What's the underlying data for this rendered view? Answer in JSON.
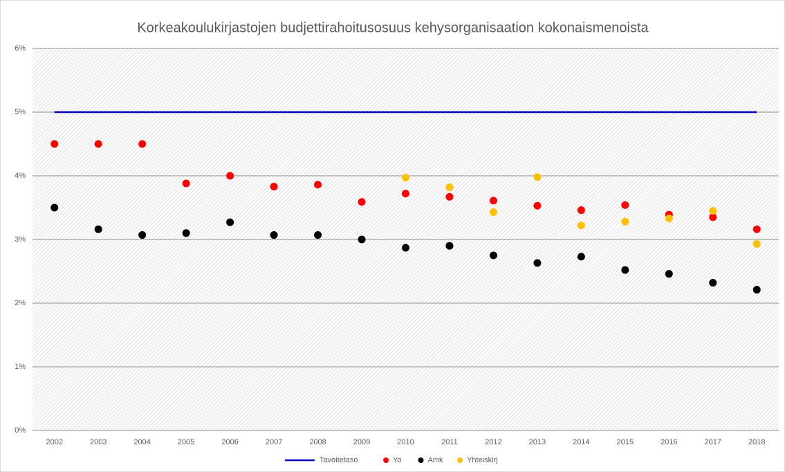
{
  "chart_data": {
    "type": "scatter",
    "title": "Korkeakoulukirjastojen budjettirahoitusosuus kehysorganisaation kokonaismenoista",
    "categories": [
      "2002",
      "2003",
      "2004",
      "2005",
      "2006",
      "2007",
      "2008",
      "2009",
      "2010",
      "2011",
      "2012",
      "2013",
      "2014",
      "2015",
      "2016",
      "2017",
      "2018"
    ],
    "series": [
      {
        "name": "Tavoitetaso",
        "type": "line",
        "color": "#0000c0",
        "values": [
          5,
          5,
          5,
          5,
          5,
          5,
          5,
          5,
          5,
          5,
          5,
          5,
          5,
          5,
          5,
          5,
          5
        ]
      },
      {
        "name": "Yo",
        "type": "scatter",
        "color": "#ff0000",
        "values": [
          4.5,
          4.5,
          4.5,
          3.88,
          4.0,
          3.83,
          3.86,
          3.59,
          3.72,
          3.67,
          3.61,
          3.53,
          3.46,
          3.54,
          3.39,
          3.35,
          3.16
        ]
      },
      {
        "name": "Amk",
        "type": "scatter",
        "color": "#000000",
        "values": [
          3.5,
          3.16,
          3.07,
          3.1,
          3.27,
          3.07,
          3.07,
          3.0,
          2.87,
          2.9,
          2.75,
          2.63,
          2.73,
          2.52,
          2.46,
          2.32,
          2.21
        ]
      },
      {
        "name": "Yhteiskirj",
        "type": "scatter",
        "color": "#ffc000",
        "values": [
          null,
          null,
          null,
          null,
          null,
          null,
          null,
          null,
          3.97,
          3.82,
          3.43,
          3.98,
          3.22,
          3.28,
          3.33,
          3.45,
          2.93
        ]
      }
    ],
    "ylim": [
      0,
      6
    ],
    "yticks": [
      {
        "value": 0,
        "label": "0%"
      },
      {
        "value": 1,
        "label": "1%"
      },
      {
        "value": 2,
        "label": "2%"
      },
      {
        "value": 3,
        "label": "3%"
      },
      {
        "value": 4,
        "label": "4%"
      },
      {
        "value": 5,
        "label": "5%"
      },
      {
        "value": 6,
        "label": "6%"
      }
    ],
    "grid": true,
    "legend": "bottom"
  }
}
